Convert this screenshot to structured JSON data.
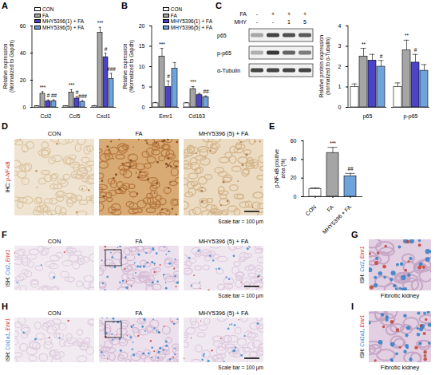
{
  "chart_data": [
    {
      "panel": "A",
      "type": "bar",
      "ylabel": "Relative expression (Normalized to Gapdh)",
      "categories": [
        "Ccl2",
        "Ccl5",
        "Cxcl1"
      ],
      "series": [
        {
          "name": "CON",
          "color": "#ffffff",
          "values": [
            1,
            1,
            1
          ],
          "errors": [
            0.2,
            0.2,
            0.3
          ],
          "significance": [
            null,
            null,
            null
          ]
        },
        {
          "name": "FA",
          "color": "#a5a5a5",
          "values": [
            10,
            11,
            55
          ],
          "errors": [
            1.5,
            2,
            4
          ],
          "significance": [
            "***",
            "***",
            "***"
          ]
        },
        {
          "name": "MHY5396(1) + FA",
          "color": "#4b44c6",
          "values": [
            4.5,
            6.5,
            37
          ],
          "errors": [
            1,
            1.5,
            3
          ],
          "significance": [
            "#",
            "#",
            "#"
          ]
        },
        {
          "name": "MHY5396(5) + FA",
          "color": "#6fa3dc",
          "values": [
            4.5,
            4,
            21
          ],
          "errors": [
            1,
            1,
            4
          ],
          "significance": [
            "##",
            "###",
            "###"
          ]
        }
      ],
      "ylim": [
        0,
        60
      ],
      "yticks": [
        0,
        20,
        40,
        60
      ],
      "legend": "top-left"
    },
    {
      "panel": "B",
      "type": "bar",
      "ylabel": "Relative expression (Normalized to Gapdh)",
      "categories": [
        "Emr1",
        "Cd163"
      ],
      "series": [
        {
          "name": "CON",
          "color": "#ffffff",
          "values": [
            1,
            1
          ],
          "errors": [
            0.2,
            0.15
          ],
          "significance": [
            null,
            null
          ]
        },
        {
          "name": "FA",
          "color": "#a5a5a5",
          "values": [
            12.5,
            4.5
          ],
          "errors": [
            2,
            0.6
          ],
          "significance": [
            "***",
            "***"
          ]
        },
        {
          "name": "MHY5396(1) + FA",
          "color": "#4b44c6",
          "values": [
            5,
            3
          ],
          "errors": [
            1.5,
            0.4
          ],
          "significance": [
            "#",
            null
          ]
        },
        {
          "name": "MHY5396(5) + FA",
          "color": "#6fa3dc",
          "values": [
            9.5,
            2.5
          ],
          "errors": [
            1.5,
            0.3
          ],
          "significance": [
            null,
            "##"
          ]
        }
      ],
      "ylim": [
        0,
        20
      ],
      "yticks": [
        0,
        5,
        10,
        15,
        20
      ],
      "legend": "top-right"
    },
    {
      "panel": "C",
      "type": "bar",
      "ylabel": "Relative protein expression (normalized to α-Tubulin)",
      "categories": [
        "p65",
        "p-p65"
      ],
      "series": [
        {
          "color": "#ffffff",
          "values": [
            1,
            1
          ],
          "errors": [
            0.15,
            0.2
          ],
          "significance": [
            null,
            null
          ]
        },
        {
          "color": "#a5a5a5",
          "values": [
            2.5,
            2.8
          ],
          "errors": [
            0.4,
            0.5
          ],
          "significance": [
            "**",
            "**"
          ]
        },
        {
          "color": "#4b44c6",
          "values": [
            2.3,
            2.2
          ],
          "errors": [
            0.3,
            0.4
          ],
          "significance": [
            null,
            "#"
          ]
        },
        {
          "color": "#6fa3dc",
          "values": [
            2.0,
            1.8
          ],
          "errors": [
            0.3,
            0.3
          ],
          "significance": [
            "#",
            null
          ]
        }
      ],
      "ylim": [
        0,
        4
      ],
      "yticks": [
        0,
        1,
        2,
        3,
        4
      ]
    },
    {
      "panel": "E",
      "type": "bar",
      "ylabel": "p-NF-κB positive area (%)",
      "categories": [
        "CON",
        "FA",
        "MHY5396 + FA"
      ],
      "values": [
        8,
        47,
        22
      ],
      "errors": [
        1.5,
        6,
        3
      ],
      "significance": [
        null,
        "***",
        "##"
      ],
      "colors": [
        "#ffffff",
        "#a5a5a5",
        "#6fa3dc"
      ],
      "ylim": [
        0,
        60
      ],
      "yticks": [
        0,
        20,
        40,
        60
      ]
    }
  ],
  "western_blot": {
    "conditions": [
      {
        "label": "FA",
        "lanes": [
          "-",
          "+",
          "+",
          "+"
        ]
      },
      {
        "label": "MHY",
        "lanes": [
          "-",
          "-",
          "1",
          "5"
        ]
      }
    ],
    "bands": [
      "p65",
      "p-p65",
      "α-Tubulin"
    ]
  },
  "images": [
    {
      "panel": "D",
      "label": [
        "IHC: ",
        {
          "text": "p-NF-κB",
          "color": "#d62728"
        }
      ],
      "titles": [
        "CON",
        "FA",
        "MHY5396 (5) + FA"
      ],
      "scale_bar": "Scale bar = 100 µm"
    },
    {
      "panel": "F",
      "label": [
        "ISH: ",
        {
          "text": "Ccl2",
          "color": "#1f77d4"
        },
        ", ",
        {
          "text": "Emr1",
          "color": "#d62728"
        }
      ],
      "titles": [
        "CON",
        "FA",
        "MHY5396 (5) + FA"
      ],
      "scale_bar": "Scale bar = 100 µm"
    },
    {
      "panel": "G",
      "label": [
        "ISH: ",
        {
          "text": "Ccl2",
          "color": "#1f77d4"
        },
        ", ",
        {
          "text": "Emr1",
          "color": "#d62728"
        }
      ],
      "titles": [
        "Fibrotic kidney"
      ]
    },
    {
      "panel": "H",
      "label": [
        "ISH: ",
        {
          "text": "Col1a1",
          "color": "#1f77d4"
        },
        ", ",
        {
          "text": "Emr1",
          "color": "#d62728"
        }
      ],
      "titles": [
        "CON",
        "FA",
        "MHY5396 (5) + FA"
      ],
      "scale_bar": "Scale bar = 100 µm"
    },
    {
      "panel": "I",
      "label": [
        "ISH: ",
        {
          "text": "Col1a1",
          "color": "#1f77d4"
        },
        ", ",
        {
          "text": "Emr1",
          "color": "#d62728"
        }
      ],
      "titles": [
        "Fibrotic kidney"
      ]
    }
  ]
}
